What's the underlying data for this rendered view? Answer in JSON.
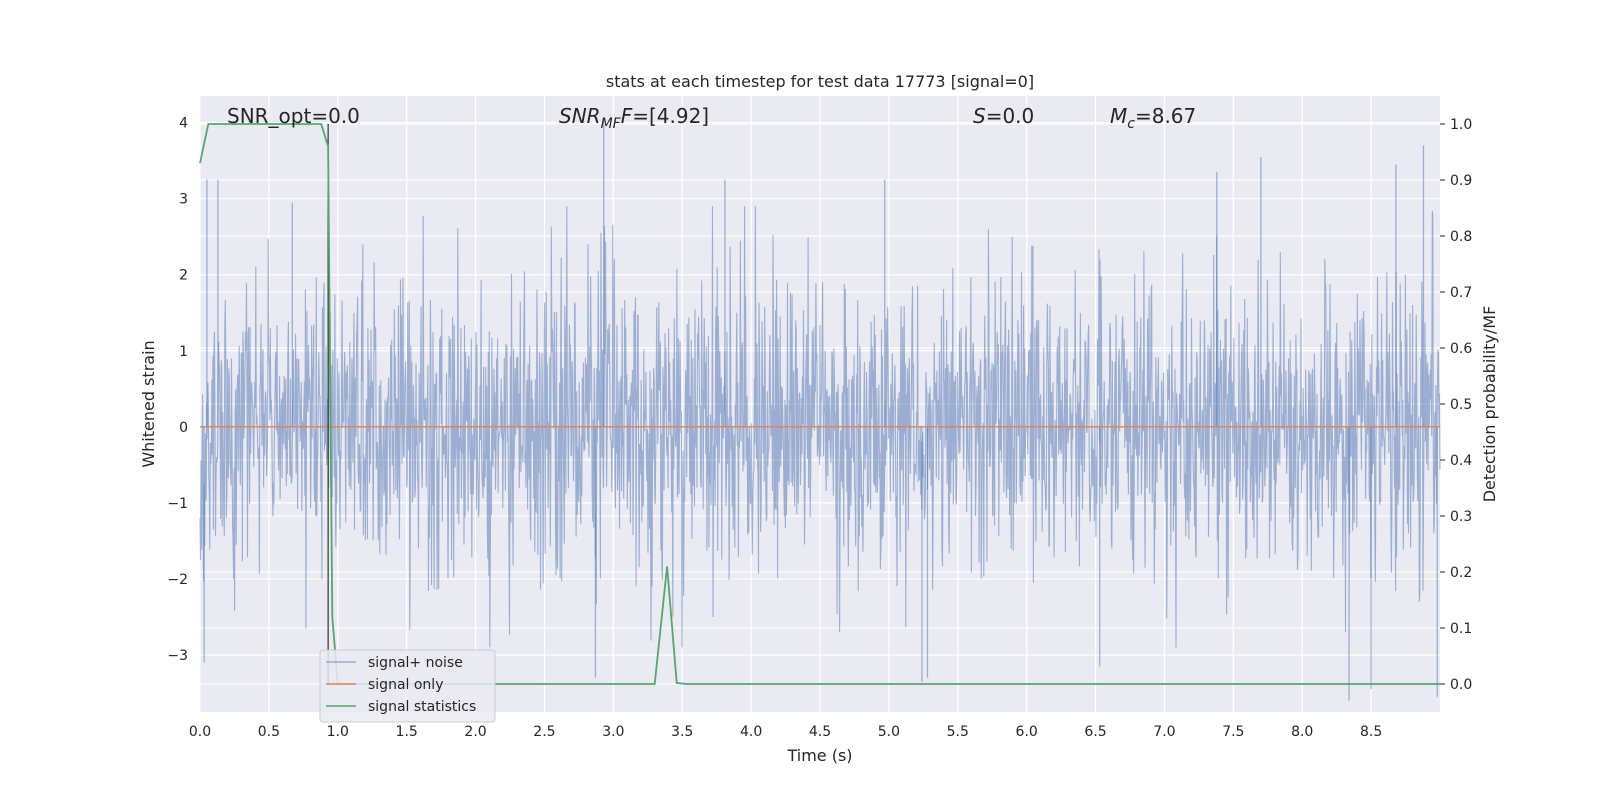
{
  "chart_data": {
    "type": "line",
    "title": "stats at each timestep for test data 17773 [signal=0]",
    "xlabel": "Time (s)",
    "ylabel": "Whitened strain",
    "y2label": "Detection probability/MF",
    "xlim": [
      0.0,
      9.0
    ],
    "ylim": [
      -3.75,
      4.35
    ],
    "y2lim": [
      -0.05,
      1.05
    ],
    "x_ticks": [
      0.0,
      0.5,
      1.0,
      1.5,
      2.0,
      2.5,
      3.0,
      3.5,
      4.0,
      4.5,
      5.0,
      5.5,
      6.0,
      6.5,
      7.0,
      7.5,
      8.0,
      8.5
    ],
    "x_tick_labels": [
      "0.0",
      "0.5",
      "1.0",
      "1.5",
      "2.0",
      "2.5",
      "3.0",
      "3.5",
      "4.0",
      "4.5",
      "5.0",
      "5.5",
      "6.0",
      "6.5",
      "7.0",
      "7.5",
      "8.0",
      "8.5"
    ],
    "y_ticks": [
      -3,
      -2,
      -1,
      0,
      1,
      2,
      3,
      4
    ],
    "y_tick_labels": [
      "−3",
      "−2",
      "−1",
      "0",
      "1",
      "2",
      "3",
      "4"
    ],
    "y2_ticks": [
      0.0,
      0.1,
      0.2,
      0.3,
      0.4,
      0.5,
      0.6,
      0.7,
      0.8,
      0.9,
      1.0
    ],
    "y2_tick_labels": [
      "0.0",
      "0.1",
      "0.2",
      "0.3",
      "0.4",
      "0.5",
      "0.6",
      "0.7",
      "0.8",
      "0.9",
      "1.0"
    ],
    "grid": true,
    "legend_position": "lower-left",
    "series": [
      {
        "name": "signal+ noise",
        "axis": "left",
        "color": "#4c72b0",
        "opacity": 0.5,
        "kind": "noise",
        "description_values": {
          "noise_seed": 17773,
          "typical_abs_max": 2.0,
          "peaks": [
            {
              "x": 0.05,
              "y": 3.25
            },
            {
              "x": 0.13,
              "y": 3.25
            },
            {
              "x": 0.67,
              "y": 2.95
            },
            {
              "x": 2.93,
              "y": 4.05
            },
            {
              "x": 3.81,
              "y": 3.25
            },
            {
              "x": 4.97,
              "y": 3.25
            },
            {
              "x": 7.38,
              "y": 3.35
            },
            {
              "x": 7.7,
              "y": 3.55
            },
            {
              "x": 8.68,
              "y": 3.45
            },
            {
              "x": 8.88,
              "y": 3.7
            },
            {
              "x": 0.03,
              "y": -3.1
            },
            {
              "x": 2.87,
              "y": -3.3
            },
            {
              "x": 5.24,
              "y": -3.35
            },
            {
              "x": 5.28,
              "y": -3.3
            },
            {
              "x": 8.34,
              "y": -3.6
            },
            {
              "x": 8.5,
              "y": -3.45
            },
            {
              "x": 8.98,
              "y": -3.55
            },
            {
              "x": 6.53,
              "y": -3.15
            }
          ]
        }
      },
      {
        "name": "signal only",
        "axis": "left",
        "color": "#dd8452",
        "x": [
          0.0,
          9.0
        ],
        "y": [
          0.0,
          0.0
        ]
      },
      {
        "name": "signal statistics",
        "axis": "right",
        "color": "#55a868",
        "x": [
          0.0,
          0.06,
          0.12,
          0.2,
          0.4,
          0.6,
          0.8,
          0.88,
          0.93,
          0.96,
          1.0,
          1.5,
          2.0,
          2.5,
          3.0,
          3.25,
          3.3,
          3.39,
          3.46,
          3.53,
          4.0,
          5.0,
          6.0,
          7.0,
          8.0,
          9.0
        ],
        "y": [
          0.93,
          1.0,
          1.0,
          1.0,
          1.0,
          1.0,
          1.0,
          1.0,
          0.96,
          0.12,
          0.0,
          0.0,
          0.0,
          0.0,
          0.0,
          0.0,
          0.0,
          0.21,
          0.002,
          0.0,
          0.0,
          0.0,
          0.0,
          0.0,
          0.0,
          0.0
        ]
      }
    ],
    "vline": {
      "x": 0.93,
      "color": "#333333"
    },
    "annotations": [
      {
        "id": "snr-opt",
        "text": "SNR_opt=0.0"
      },
      {
        "id": "snr-mf",
        "text_main": "SNR",
        "text_sub": "MF",
        "text_tail": "=[4.92]"
      },
      {
        "id": "s-stat",
        "text_main": "S",
        "text_tail": "=0.0"
      },
      {
        "id": "mc",
        "text_main": "M",
        "text_sub": "c",
        "text_tail": "=8.67"
      }
    ],
    "colors": {
      "plot_bg": "#eaeaf2",
      "grid": "#ffffff",
      "text": "#262626"
    }
  }
}
